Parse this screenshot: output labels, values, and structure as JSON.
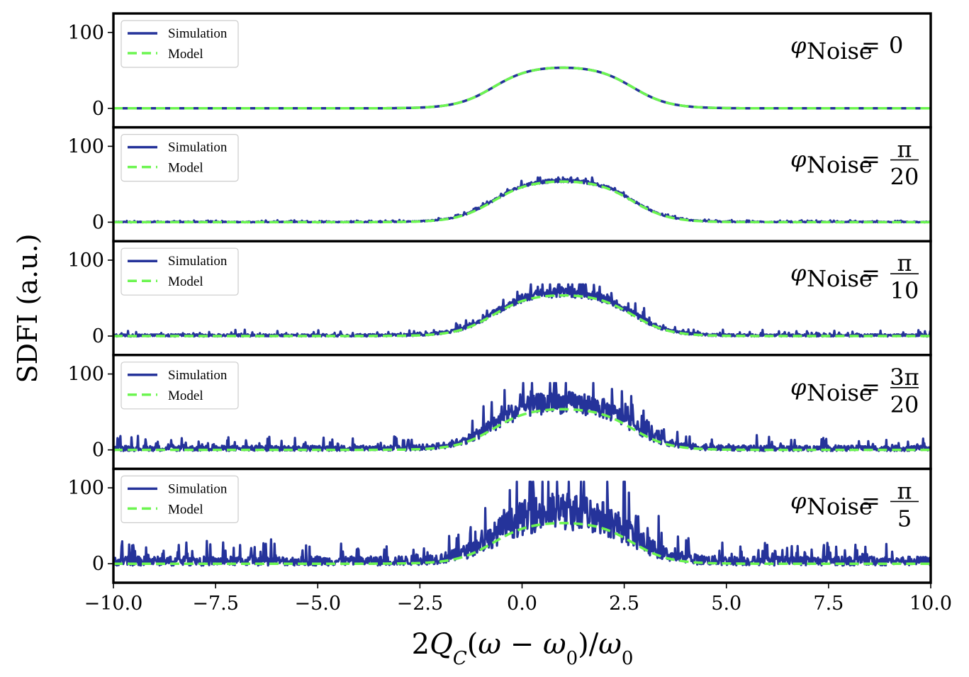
{
  "chart_data": {
    "type": "line",
    "ylabel": "SDFI (a.u.)",
    "xlabel": "2Q_C(ω − ω_0)/ω_0",
    "xlim": [
      -10.0,
      10.0
    ],
    "ylim": [
      -25,
      125
    ],
    "x_ticks": [
      "−10.0",
      "−7.5",
      "−5.0",
      "−2.5",
      "0.0",
      "2.5",
      "5.0",
      "7.5",
      "10.0"
    ],
    "y_ticks": [
      "0",
      "100"
    ],
    "legend": [
      "Simulation",
      "Model"
    ],
    "legend_position": "top-left",
    "colors": {
      "simulation": "#25339a",
      "model": "#6cf550"
    },
    "model_curve": {
      "description": "smooth plateau peak, same in every panel",
      "peak_value": 56,
      "center_x": 1.0,
      "half_width": 1.7,
      "baseline": 0
    },
    "panels": [
      {
        "name": "phi-0",
        "annotation": {
          "lhs": "φ",
          "sub": "Noise",
          "num": "0",
          "den": ""
        },
        "noise_amplitude": 0,
        "max_spike": 56
      },
      {
        "name": "phi-pi-20",
        "annotation": {
          "lhs": "φ",
          "sub": "Noise",
          "num": "π",
          "den": "20"
        },
        "noise_amplitude": 0.05,
        "max_spike": 59
      },
      {
        "name": "phi-pi-10",
        "annotation": {
          "lhs": "φ",
          "sub": "Noise",
          "num": "π",
          "den": "10"
        },
        "noise_amplitude": 0.15,
        "max_spike": 68
      },
      {
        "name": "phi-3pi-20",
        "annotation": {
          "lhs": "φ",
          "sub": "Noise",
          "num": "3π",
          "den": "20"
        },
        "noise_amplitude": 0.35,
        "max_spike": 88
      },
      {
        "name": "phi-pi-5",
        "annotation": {
          "lhs": "φ",
          "sub": "Noise",
          "num": "π",
          "den": "5"
        },
        "noise_amplitude": 0.6,
        "max_spike": 108
      }
    ]
  }
}
